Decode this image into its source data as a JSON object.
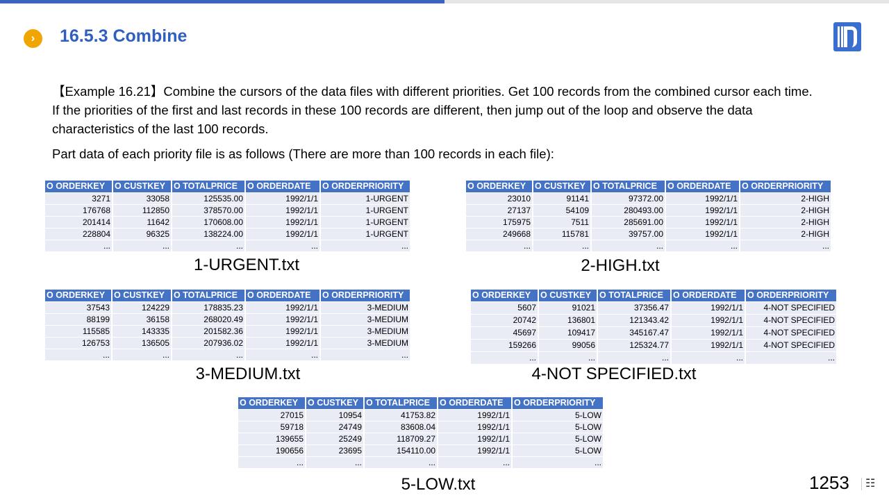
{
  "slide": {
    "progress": 0.5,
    "title": "16.5.3 Combine",
    "bullet_icon": "chevron-right-icon",
    "page_number": "1253",
    "paragraph": "【Example 16.21】Combine the cursors of the data files with different priorities. Get 100 records from the combined cursor each time. If the priorities of the first and last records in these 100 records are different, then jump out of the loop and observe the data characteristics of the last 100 records.",
    "paragraph2": "Part data of each priority file is as follows (There are more than 100 records in each file):"
  },
  "columns": [
    "O_ORDERKEY",
    "O_CUSTKEY",
    "O_TOTALPRICE",
    "O_ORDERDATE",
    "O_ORDERPRIORITY"
  ],
  "tables": [
    {
      "caption": "1-URGENT.txt",
      "rows": [
        [
          "3271",
          "33058",
          "125535.00",
          "1992/1/1",
          "1-URGENT"
        ],
        [
          "176768",
          "112850",
          "378570.00",
          "1992/1/1",
          "1-URGENT"
        ],
        [
          "201414",
          "11642",
          "170608.00",
          "1992/1/1",
          "1-URGENT"
        ],
        [
          "228804",
          "96325",
          "138224.00",
          "1992/1/1",
          "1-URGENT"
        ],
        [
          "...",
          "...",
          "...",
          "...",
          "..."
        ]
      ]
    },
    {
      "caption": "2-HIGH.txt",
      "rows": [
        [
          "23010",
          "91141",
          "97372.00",
          "1992/1/1",
          "2-HIGH"
        ],
        [
          "27137",
          "54109",
          "280493.00",
          "1992/1/1",
          "2-HIGH"
        ],
        [
          "175975",
          "7511",
          "285691.00",
          "1992/1/1",
          "2-HIGH"
        ],
        [
          "249668",
          "115781",
          "39757.00",
          "1992/1/1",
          "2-HIGH"
        ],
        [
          "...",
          "...",
          "...",
          "...",
          "..."
        ]
      ]
    },
    {
      "caption": "3-MEDIUM.txt",
      "rows": [
        [
          "37543",
          "124229",
          "178835.23",
          "1992/1/1",
          "3-MEDIUM"
        ],
        [
          "88199",
          "36158",
          "268020.49",
          "1992/1/1",
          "3-MEDIUM"
        ],
        [
          "115585",
          "143335",
          "201582.36",
          "1992/1/1",
          "3-MEDIUM"
        ],
        [
          "126753",
          "136505",
          "207936.02",
          "1992/1/1",
          "3-MEDIUM"
        ],
        [
          "...",
          "...",
          "...",
          "...",
          "..."
        ]
      ]
    },
    {
      "caption": "4-NOT SPECIFIED.txt",
      "rows": [
        [
          "5607",
          "91021",
          "37356.47",
          "1992/1/1",
          "4-NOT SPECIFIED"
        ],
        [
          "20742",
          "136801",
          "121343.42",
          "1992/1/1",
          "4-NOT SPECIFIED"
        ],
        [
          "45697",
          "109417",
          "345167.47",
          "1992/1/1",
          "4-NOT SPECIFIED"
        ],
        [
          "159266",
          "99056",
          "125324.77",
          "1992/1/1",
          "4-NOT SPECIFIED"
        ],
        [
          "...",
          "...",
          "...",
          "...",
          "..."
        ]
      ]
    },
    {
      "caption": "5-LOW.txt",
      "rows": [
        [
          "27015",
          "10954",
          "41753.82",
          "1992/1/1",
          "5-LOW"
        ],
        [
          "59718",
          "24749",
          "83608.04",
          "1992/1/1",
          "5-LOW"
        ],
        [
          "139655",
          "25249",
          "118709.27",
          "1992/1/1",
          "5-LOW"
        ],
        [
          "190656",
          "23695",
          "154110.00",
          "1992/1/1",
          "5-LOW"
        ],
        [
          "...",
          "...",
          "...",
          "...",
          "..."
        ]
      ]
    }
  ]
}
